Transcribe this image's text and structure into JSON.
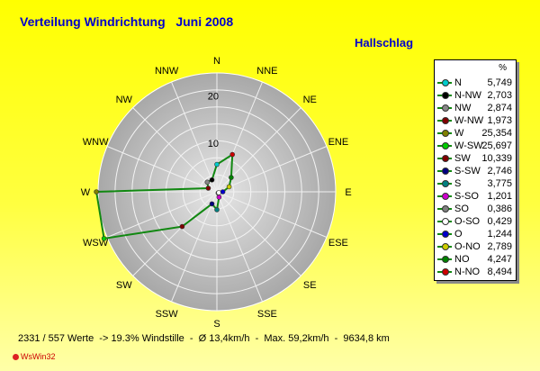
{
  "header": {
    "title": "Verteilung Windrichtung   Juni 2008",
    "station": "Hallschlag"
  },
  "footer": {
    "stats": "2331 / 557 Werte  -> 19.3% Windstille  -  Ø 13,4km/h  -  Max. 59,2km/h  -  9634,8 km",
    "logo": "WsWin32"
  },
  "legend": {
    "unit": "%"
  },
  "colors": {
    "series_line": "#118811",
    "marker_line": "#cc2200"
  },
  "chart_data": {
    "type": "radar",
    "title": "Verteilung Windrichtung   Juni 2008",
    "subtitle": "Hallschlag",
    "rlim": [
      0,
      25
    ],
    "ticks": [
      "10",
      "20"
    ],
    "grid": true,
    "legend_position": "right",
    "direction_labels": [
      "N",
      "NNE",
      "NE",
      "ENE",
      "E",
      "ESE",
      "SE",
      "SSE",
      "S",
      "SSW",
      "SW",
      "WSW",
      "W",
      "WNW",
      "NW",
      "NNW"
    ],
    "categories": [
      "N",
      "N-NW",
      "NW",
      "W-NW",
      "W",
      "W-SW",
      "SW",
      "S-SW",
      "S",
      "S-SO",
      "SO",
      "O-SO",
      "O",
      "O-NO",
      "NO",
      "N-NO"
    ],
    "values": [
      5.749,
      2.703,
      2.874,
      1.973,
      25.354,
      25.697,
      10.339,
      2.746,
      3.775,
      1.201,
      0.386,
      0.429,
      1.244,
      2.789,
      4.247,
      8.494
    ],
    "value_labels": [
      "5,749",
      "2,703",
      "2,874",
      "1,973",
      "25,354",
      "25,697",
      "10,339",
      "2,746",
      "3,775",
      "1,201",
      "0,386",
      "0,429",
      "1,244",
      "2,789",
      "4,247",
      "8,494"
    ],
    "marker_colors": [
      "#00cccc",
      "#000000",
      "#888888",
      "#800000",
      "#808000",
      "#00cc00",
      "#800000",
      "#000080",
      "#008080",
      "#cc00cc",
      "#808080",
      "#ffffff",
      "#0000cc",
      "#cccc00",
      "#008000",
      "#cc0000"
    ]
  }
}
